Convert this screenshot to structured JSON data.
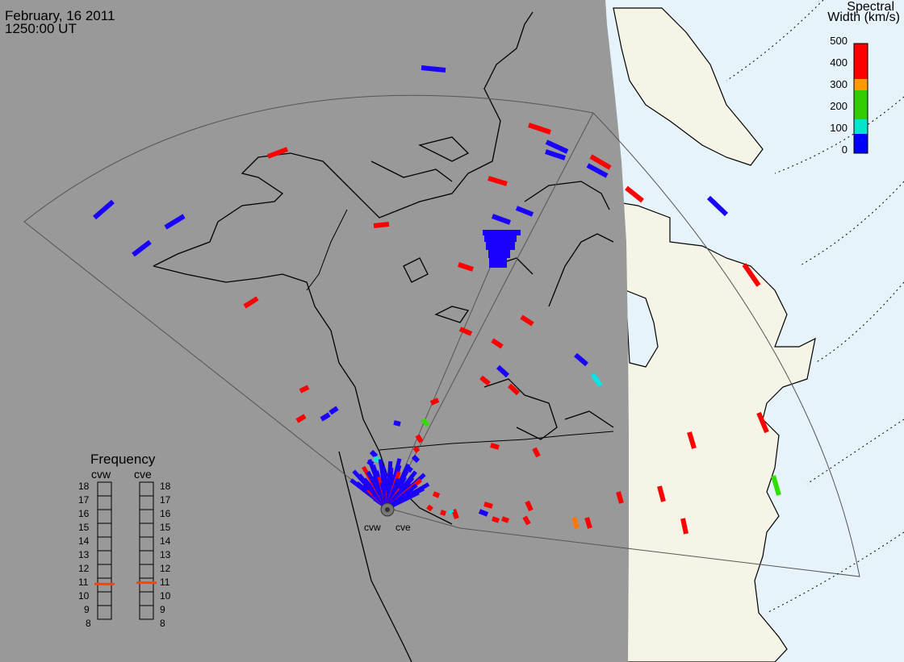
{
  "header": {
    "date": "February, 16 2011",
    "time": "1250:00 UT"
  },
  "colorbar": {
    "title_line1": "Spectral",
    "title_line2": "Width (km/s)",
    "ticks": [
      "500",
      "400",
      "300",
      "200",
      "100",
      "0"
    ],
    "colors": [
      "#ff0000",
      "#ff9900",
      "#33cc00",
      "#00e5cc",
      "#0000ff"
    ]
  },
  "frequency_panel": {
    "title": "Frequency",
    "radars": [
      "cvw",
      "cve"
    ],
    "ticks": [
      "18",
      "17",
      "16",
      "15",
      "14",
      "13",
      "12",
      "11",
      "10",
      "9",
      "8"
    ],
    "cvw_frequency_mhz": 10.6,
    "cve_frequency_mhz": 10.7,
    "marker_color": "#ff4400"
  },
  "radar_labels": [
    "cvw",
    "cve"
  ],
  "colors": {
    "night_shade": "#999999",
    "day_land": "#f6f4e6",
    "day_ocean": "#e6f3fb",
    "coastline": "#000000"
  }
}
